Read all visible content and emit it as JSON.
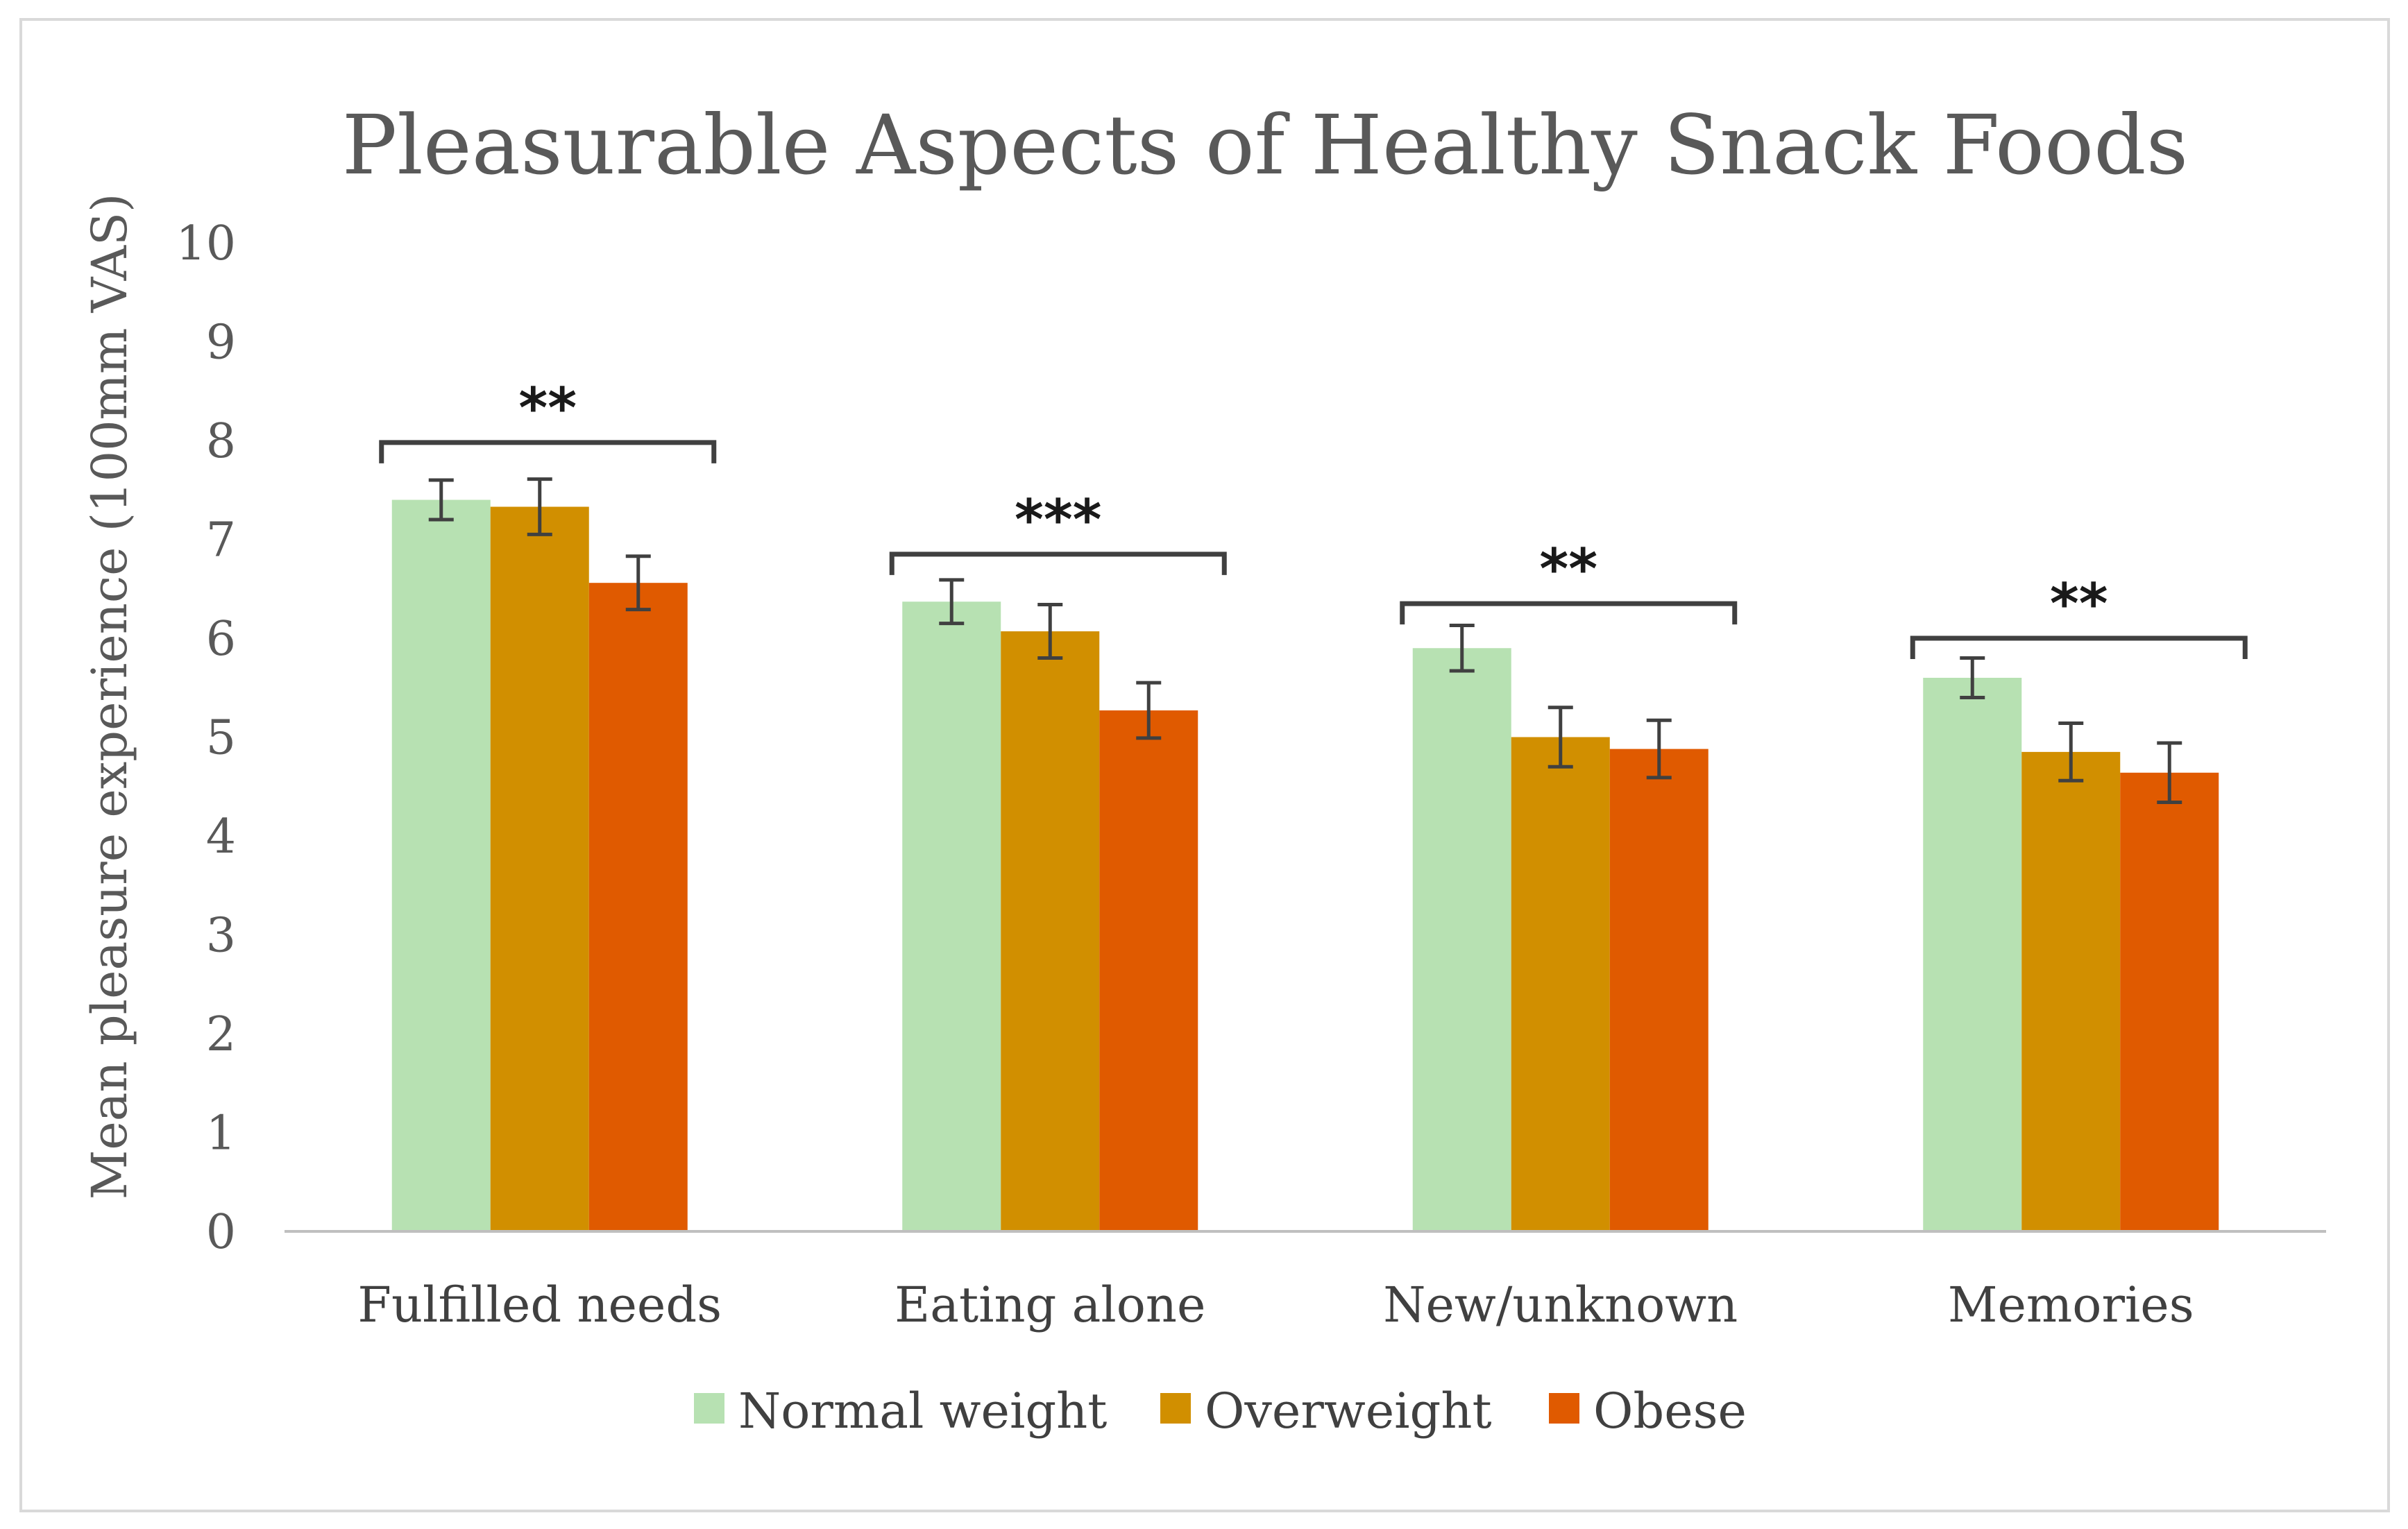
{
  "chart_data": {
    "type": "bar",
    "title": "Pleasurable Aspects of Healthy Snack Foods",
    "xlabel": "",
    "ylabel": "Mean pleasure experience (100mm VAS)",
    "ylim": [
      0,
      10
    ],
    "yticks": [
      "0",
      "1",
      "2",
      "3",
      "4",
      "5",
      "6",
      "7",
      "8",
      "9",
      "10"
    ],
    "categories": [
      "Fulfilled needs",
      "Eating alone",
      "New/unknown",
      "Memories"
    ],
    "series": [
      {
        "name": "Normal weight",
        "color": "#b7e1b2",
        "values": [
          7.4,
          6.37,
          5.9,
          5.6
        ],
        "errors": [
          0.2,
          0.22,
          0.23,
          0.2
        ]
      },
      {
        "name": "Overweight",
        "color": "#d18f00",
        "values": [
          7.33,
          6.07,
          5.0,
          4.85
        ],
        "errors": [
          0.28,
          0.27,
          0.3,
          0.29
        ]
      },
      {
        "name": "Obese",
        "color": "#e05a00",
        "values": [
          6.56,
          5.27,
          4.88,
          4.64
        ],
        "errors": [
          0.27,
          0.28,
          0.29,
          0.3
        ]
      }
    ],
    "significance": [
      {
        "category": "Fulfilled needs",
        "label": "**",
        "level": 7.98
      },
      {
        "category": "Eating alone",
        "label": "***",
        "level": 6.85
      },
      {
        "category": "New/unknown",
        "label": "**",
        "level": 6.35
      },
      {
        "category": "Memories",
        "label": "**",
        "level": 6.0
      }
    ],
    "legend_position": "bottom",
    "grid": false
  }
}
